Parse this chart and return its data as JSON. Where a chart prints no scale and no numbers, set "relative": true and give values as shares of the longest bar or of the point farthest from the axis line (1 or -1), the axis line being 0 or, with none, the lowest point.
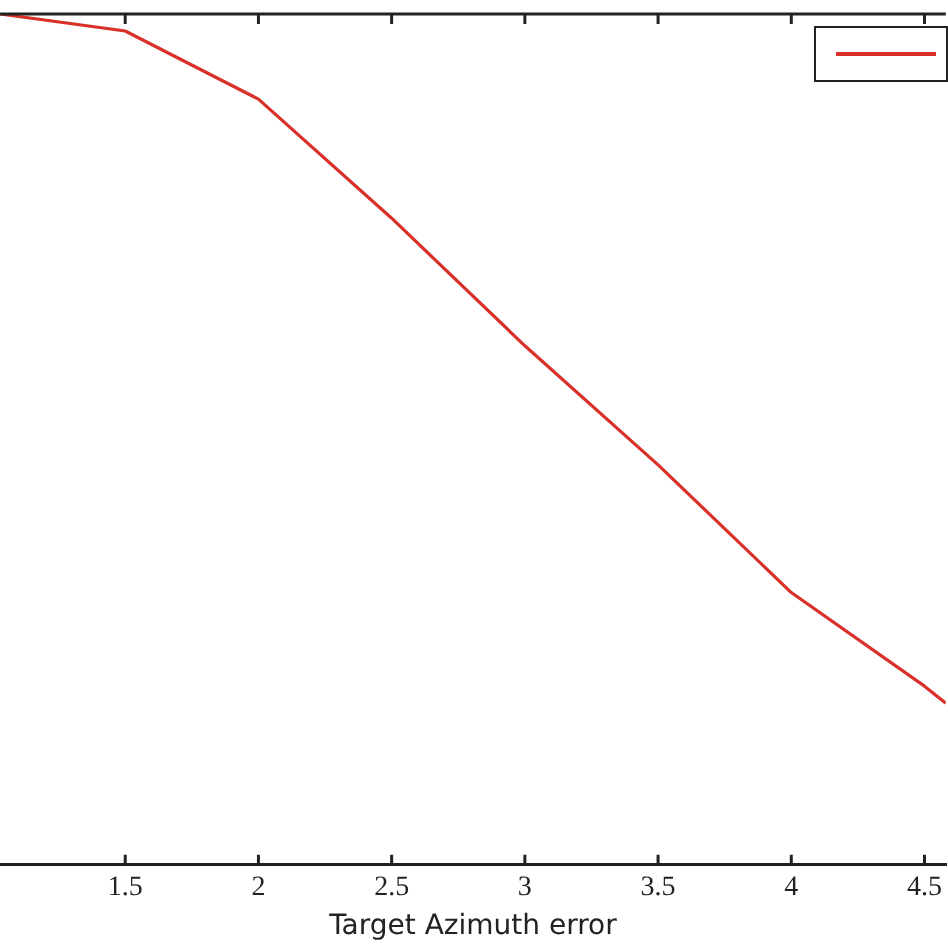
{
  "chart_data": {
    "type": "line",
    "xlabel": "Target Azimuth error",
    "relative": true,
    "xlim": [
      1.03,
      4.58
    ],
    "xticks": [
      1.5,
      2,
      2.5,
      3,
      3.5,
      4,
      4.5
    ],
    "x": [
      1.03,
      1.5,
      2,
      2.5,
      3,
      3.5,
      4,
      4.5,
      4.58
    ],
    "series": [
      {
        "color": "#d9302a",
        "values": [
          1,
          0.98,
          0.9,
          0.76,
          0.61,
          0.47,
          0.32,
          0.21,
          0.19
        ]
      }
    ],
    "grid": false,
    "marker": "none",
    "line_style": "solid"
  }
}
